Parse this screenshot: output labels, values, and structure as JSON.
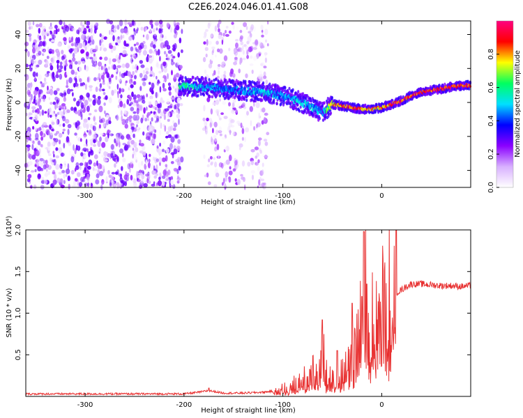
{
  "title": "C2E6.2024.046.01.41.G08",
  "chart_data": [
    {
      "type": "heatmap",
      "xlabel": "Height of straight line (km)",
      "ylabel": "Frequency (Hz)",
      "xlim": [
        -360,
        90
      ],
      "ylim": [
        -50,
        48
      ],
      "x_ticks": [
        -300,
        -200,
        -100,
        0
      ],
      "x_tick_labels": [
        "-300",
        "-200",
        "-100",
        "0"
      ],
      "y_ticks": [
        -40,
        -20,
        0,
        20,
        40
      ],
      "y_tick_labels": [
        "-40",
        "-20",
        "0",
        "20",
        "40"
      ],
      "colorbar": {
        "label": "Normalized spectral amplitude",
        "range": [
          0,
          1
        ],
        "ticks": [
          0,
          0.2,
          0.4,
          0.6,
          0.8
        ],
        "tick_labels": [
          "0.0",
          "0.2",
          "0.4",
          "0.6",
          "0.8"
        ],
        "colormap": [
          "#ffffff",
          "#d8b0ff",
          "#8a00ff",
          "#0000ff",
          "#00e0ff",
          "#00ff60",
          "#ffff00",
          "#ff0000",
          "#ff0080"
        ]
      },
      "trace": {
        "x": [
          -205,
          -180,
          -160,
          -140,
          -120,
          -100,
          -85,
          -70,
          -60,
          -50,
          -40,
          -30,
          -20,
          -10,
          0,
          10,
          20,
          30,
          40,
          50,
          60,
          70,
          80,
          90
        ],
        "y": [
          10,
          9,
          8,
          7,
          6,
          4,
          1,
          -3,
          -6,
          -1,
          -2,
          -3,
          -4,
          -4,
          -3,
          -1,
          1,
          4,
          6,
          7,
          8,
          9,
          10,
          10
        ],
        "peak_amplitude": [
          0.6,
          0.5,
          0.45,
          0.45,
          0.5,
          0.45,
          0.5,
          0.5,
          0.45,
          0.8,
          0.85,
          0.85,
          0.85,
          0.8,
          0.8,
          0.85,
          0.9,
          0.9,
          0.9,
          0.9,
          0.9,
          0.9,
          0.9,
          0.9
        ]
      },
      "background_noise": {
        "x_range": [
          -360,
          -202
        ],
        "gap_range": [
          -197,
          -180
        ],
        "sparse_range": [
          -180,
          -115
        ],
        "level": 0.3
      }
    },
    {
      "type": "line",
      "xlabel": "Height of straight line (km)",
      "ylabel": "SNR (10 * v/v)",
      "y_multiplier": "(x10⁴)",
      "xlim": [
        -360,
        90
      ],
      "ylim": [
        0,
        2.0
      ],
      "x_ticks": [
        -300,
        -200,
        -100,
        0
      ],
      "x_tick_labels": [
        "-300",
        "-200",
        "-100",
        "0"
      ],
      "y_ticks": [
        0.5,
        1.0,
        1.5,
        2.0
      ],
      "y_tick_labels": [
        "0.5",
        "1.0",
        "1.5",
        "2.0"
      ],
      "color": "#e83030",
      "series": [
        {
          "x": [
            -360,
            -300,
            -250,
            -200,
            -185,
            -175,
            -160,
            -140,
            -120,
            -105,
            -95,
            -85,
            -75,
            -65,
            -60,
            -55,
            -50,
            -45,
            -40,
            -35,
            -30,
            -25,
            -20,
            -18,
            -15,
            -10,
            -5,
            0,
            5,
            10,
            15,
            20,
            25,
            30,
            40,
            50,
            60,
            70,
            80,
            90
          ],
          "values": [
            0.03,
            0.03,
            0.03,
            0.03,
            0.05,
            0.07,
            0.04,
            0.04,
            0.05,
            0.07,
            0.1,
            0.15,
            0.22,
            0.3,
            0.5,
            0.25,
            0.2,
            0.2,
            0.25,
            0.3,
            0.5,
            0.6,
            0.9,
            1.95,
            0.75,
            0.8,
            0.9,
            1.0,
            1.1,
            1.2,
            1.25,
            1.28,
            1.32,
            1.35,
            1.35,
            1.34,
            1.33,
            1.33,
            1.32,
            1.33
          ],
          "noise_spikes": [
            {
              "x": -175,
              "value": 0.1
            },
            {
              "x": -60,
              "value": 0.92
            },
            {
              "x": -45,
              "value": 0.55
            },
            {
              "x": -30,
              "value": 1.12
            },
            {
              "x": -20,
              "value": 1.2
            },
            {
              "x": -18,
              "value": 1.98
            },
            {
              "x": -15,
              "value": 1.35
            }
          ]
        }
      ]
    }
  ]
}
